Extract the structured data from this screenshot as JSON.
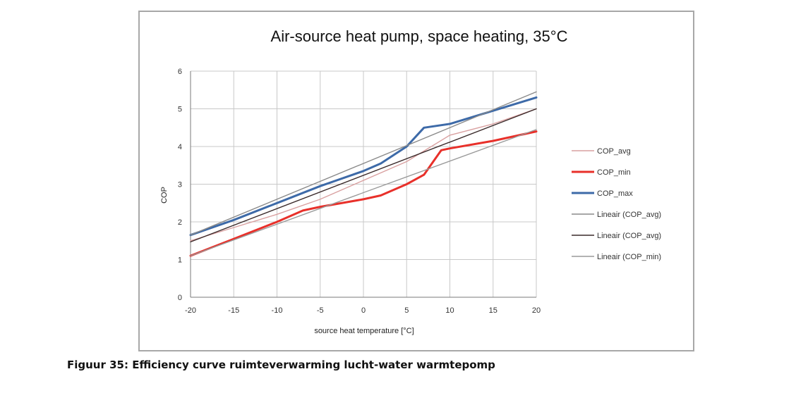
{
  "caption": "Figuur 35: Efficiency curve ruimteverwarming lucht-water warmtepomp",
  "chart_data": {
    "type": "line",
    "title": "Air-source heat pump, space heating, 35°C",
    "xlabel": "source heat temperature [°C]",
    "ylabel": "COP",
    "xlim": [
      -20,
      20
    ],
    "ylim": [
      0,
      6
    ],
    "x_ticks": [
      "-20",
      "-15",
      "-10",
      "-5",
      "0",
      "5",
      "10",
      "15",
      "20"
    ],
    "y_ticks": [
      "0",
      "1",
      "2",
      "3",
      "4",
      "5",
      "6"
    ],
    "grid": true,
    "legend_position": "right",
    "series": [
      {
        "name": "COP_avg",
        "color": "#d9a0a0",
        "style": "thin",
        "points": [
          [
            -20,
            1.5
          ],
          [
            -15,
            1.85
          ],
          [
            -10,
            2.2
          ],
          [
            -5,
            2.6
          ],
          [
            0,
            3.1
          ],
          [
            5,
            3.6
          ],
          [
            10,
            4.3
          ],
          [
            15,
            4.6
          ],
          [
            20,
            5.0
          ]
        ]
      },
      {
        "name": "COP_min",
        "color": "#e8302a",
        "style": "thick",
        "points": [
          [
            -20,
            1.1
          ],
          [
            -15,
            1.55
          ],
          [
            -10,
            2.0
          ],
          [
            -7,
            2.3
          ],
          [
            -5,
            2.4
          ],
          [
            0,
            2.6
          ],
          [
            2,
            2.7
          ],
          [
            5,
            3.0
          ],
          [
            7,
            3.25
          ],
          [
            9,
            3.9
          ],
          [
            10,
            3.95
          ],
          [
            15,
            4.15
          ],
          [
            20,
            4.4
          ]
        ]
      },
      {
        "name": "COP_max",
        "color": "#3d6aa8",
        "style": "thick",
        "points": [
          [
            -20,
            1.65
          ],
          [
            -15,
            2.05
          ],
          [
            -10,
            2.5
          ],
          [
            -5,
            2.95
          ],
          [
            0,
            3.35
          ],
          [
            2,
            3.55
          ],
          [
            5,
            4.0
          ],
          [
            7,
            4.5
          ],
          [
            10,
            4.6
          ],
          [
            15,
            4.95
          ],
          [
            20,
            5.3
          ]
        ]
      },
      {
        "name": "Lineair (COP_avg)",
        "color": "#8a8a8a",
        "style": "thin",
        "points": [
          [
            -20,
            1.65
          ],
          [
            20,
            5.45
          ]
        ]
      },
      {
        "name": "Lineair (COP_avg)",
        "color": "#3a2a2a",
        "style": "thin",
        "points": [
          [
            -20,
            1.47
          ],
          [
            20,
            5.0
          ]
        ]
      },
      {
        "name": "Lineair (COP_min)",
        "color": "#9a9a9a",
        "style": "thin",
        "points": [
          [
            -20,
            1.1
          ],
          [
            20,
            4.45
          ]
        ]
      }
    ]
  }
}
